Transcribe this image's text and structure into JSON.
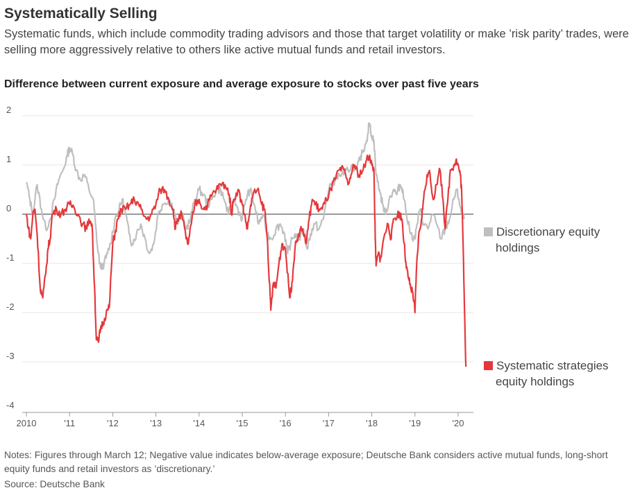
{
  "title": "Systematically Selling",
  "subtitle": "Systematic funds, which include commodity trading advisors and those that target volatility or make ’risk parity’ trades, were selling more aggressively relative to others like active mutual funds and retail investors.",
  "notes": "Notes: Figures through March 12; Negative value indicates below-average exposure; Deutsche Bank considers active mutual funds, long-short equity funds and retail investors as ’discretionary.’",
  "source": "Source: Deutsche Bank",
  "legend": {
    "discretionary_line1": "Discretionary equity",
    "discretionary_line2": "holdings",
    "systematic_line1": "Systematic strategies",
    "systematic_line2": "equity holdings"
  },
  "colors": {
    "discretionary": "#bfbfbf",
    "systematic": "#e5383b",
    "zero_line": "#333333",
    "grid": "#e6e6e6",
    "axis": "#999999"
  },
  "chart_data": {
    "type": "line",
    "title": "Difference between current exposure and average exposure to stocks over past five years",
    "xlabel": "",
    "ylabel": "",
    "x_tick_labels": [
      "2010",
      "'11",
      "'12",
      "'13",
      "'14",
      "'15",
      "'16",
      "'17",
      "'18",
      "'19",
      "'20"
    ],
    "y_tick_labels": [
      "2",
      "1",
      "0",
      "-1",
      "-2",
      "-3",
      "-4"
    ],
    "ylim": [
      -4,
      2
    ],
    "xlim": [
      2010.0,
      2020.3
    ],
    "grid": true,
    "legend_position": "right",
    "series": [
      {
        "name": "Discretionary equity holdings",
        "points": [
          [
            2010.0,
            0.65
          ],
          [
            2010.08,
            0.3
          ],
          [
            2010.15,
            0.0
          ],
          [
            2010.25,
            0.6
          ],
          [
            2010.35,
            0.1
          ],
          [
            2010.45,
            -0.3
          ],
          [
            2010.55,
            -0.1
          ],
          [
            2010.65,
            0.3
          ],
          [
            2010.75,
            0.7
          ],
          [
            2010.85,
            0.9
          ],
          [
            2010.95,
            1.2
          ],
          [
            2011.0,
            1.35
          ],
          [
            2011.08,
            1.2
          ],
          [
            2011.15,
            0.9
          ],
          [
            2011.25,
            0.7
          ],
          [
            2011.35,
            0.8
          ],
          [
            2011.45,
            0.5
          ],
          [
            2011.55,
            0.3
          ],
          [
            2011.6,
            -0.2
          ],
          [
            2011.65,
            -0.7
          ],
          [
            2011.72,
            -1.1
          ],
          [
            2011.8,
            -1.0
          ],
          [
            2011.88,
            -0.8
          ],
          [
            2011.95,
            -0.6
          ],
          [
            2012.05,
            -0.1
          ],
          [
            2012.15,
            0.1
          ],
          [
            2012.22,
            0.3
          ],
          [
            2012.3,
            0.0
          ],
          [
            2012.38,
            -0.4
          ],
          [
            2012.45,
            -0.6
          ],
          [
            2012.55,
            -0.4
          ],
          [
            2012.65,
            -0.2
          ],
          [
            2012.75,
            -0.5
          ],
          [
            2012.85,
            -0.8
          ],
          [
            2012.95,
            -0.6
          ],
          [
            2013.05,
            0.0
          ],
          [
            2013.15,
            0.2
          ],
          [
            2013.3,
            0.3
          ],
          [
            2013.42,
            0.1
          ],
          [
            2013.5,
            -0.2
          ],
          [
            2013.6,
            0.0
          ],
          [
            2013.7,
            -0.3
          ],
          [
            2013.8,
            -0.1
          ],
          [
            2013.9,
            0.3
          ],
          [
            2014.0,
            0.5
          ],
          [
            2014.1,
            0.4
          ],
          [
            2014.2,
            0.2
          ],
          [
            2014.3,
            0.3
          ],
          [
            2014.4,
            0.5
          ],
          [
            2014.5,
            0.5
          ],
          [
            2014.58,
            0.3
          ],
          [
            2014.68,
            0.0
          ],
          [
            2014.8,
            0.3
          ],
          [
            2014.9,
            0.1
          ],
          [
            2015.0,
            -0.1
          ],
          [
            2015.08,
            0.3
          ],
          [
            2015.18,
            0.5
          ],
          [
            2015.28,
            0.2
          ],
          [
            2015.38,
            -0.2
          ],
          [
            2015.48,
            0.0
          ],
          [
            2015.58,
            -0.4
          ],
          [
            2015.68,
            -0.5
          ],
          [
            2015.78,
            -0.3
          ],
          [
            2015.88,
            -0.2
          ],
          [
            2015.98,
            -0.4
          ],
          [
            2016.05,
            -0.8
          ],
          [
            2016.12,
            -0.6
          ],
          [
            2016.22,
            -0.4
          ],
          [
            2016.32,
            -0.5
          ],
          [
            2016.42,
            -0.3
          ],
          [
            2016.5,
            -0.7
          ],
          [
            2016.58,
            -0.4
          ],
          [
            2016.68,
            -0.2
          ],
          [
            2016.78,
            -0.3
          ],
          [
            2016.88,
            -0.1
          ],
          [
            2016.95,
            0.3
          ],
          [
            2017.05,
            0.6
          ],
          [
            2017.15,
            0.7
          ],
          [
            2017.25,
            0.8
          ],
          [
            2017.35,
            0.8
          ],
          [
            2017.45,
            0.9
          ],
          [
            2017.55,
            1.0
          ],
          [
            2017.65,
            0.9
          ],
          [
            2017.72,
            1.1
          ],
          [
            2017.8,
            1.3
          ],
          [
            2017.88,
            1.5
          ],
          [
            2017.94,
            1.85
          ],
          [
            2018.0,
            1.6
          ],
          [
            2018.05,
            1.5
          ],
          [
            2018.1,
            0.8
          ],
          [
            2018.18,
            0.5
          ],
          [
            2018.25,
            0.2
          ],
          [
            2018.32,
            0.0
          ],
          [
            2018.4,
            0.3
          ],
          [
            2018.5,
            0.5
          ],
          [
            2018.58,
            0.4
          ],
          [
            2018.65,
            0.6
          ],
          [
            2018.72,
            0.5
          ],
          [
            2018.8,
            0.0
          ],
          [
            2018.9,
            -0.4
          ],
          [
            2019.0,
            -0.5
          ],
          [
            2019.05,
            -0.2
          ],
          [
            2019.12,
            0.1
          ],
          [
            2019.2,
            -0.2
          ],
          [
            2019.3,
            -0.3
          ],
          [
            2019.4,
            0.0
          ],
          [
            2019.5,
            -0.2
          ],
          [
            2019.6,
            -0.5
          ],
          [
            2019.7,
            -0.3
          ],
          [
            2019.8,
            -0.1
          ],
          [
            2019.9,
            0.3
          ],
          [
            2019.96,
            0.5
          ],
          [
            2020.02,
            0.3
          ],
          [
            2020.08,
            0.0
          ],
          [
            2020.14,
            -0.1
          ]
        ]
      },
      {
        "name": "Systematic strategies equity holdings",
        "points": [
          [
            2010.0,
            0.0
          ],
          [
            2010.05,
            -0.3
          ],
          [
            2010.1,
            -0.5
          ],
          [
            2010.15,
            0.0
          ],
          [
            2010.2,
            0.1
          ],
          [
            2010.25,
            -0.4
          ],
          [
            2010.32,
            -1.5
          ],
          [
            2010.38,
            -1.7
          ],
          [
            2010.45,
            -1.2
          ],
          [
            2010.5,
            -0.7
          ],
          [
            2010.55,
            -0.5
          ],
          [
            2010.6,
            0.0
          ],
          [
            2010.7,
            0.1
          ],
          [
            2010.8,
            0.0
          ],
          [
            2010.9,
            0.1
          ],
          [
            2011.0,
            0.2
          ],
          [
            2011.1,
            0.15
          ],
          [
            2011.2,
            0.0
          ],
          [
            2011.3,
            -0.2
          ],
          [
            2011.4,
            -0.3
          ],
          [
            2011.45,
            -0.1
          ],
          [
            2011.52,
            -0.2
          ],
          [
            2011.58,
            -1.5
          ],
          [
            2011.62,
            -2.55
          ],
          [
            2011.67,
            -2.6
          ],
          [
            2011.72,
            -2.3
          ],
          [
            2011.78,
            -2.2
          ],
          [
            2011.85,
            -2.0
          ],
          [
            2011.92,
            -1.9
          ],
          [
            2012.0,
            -0.6
          ],
          [
            2012.05,
            -0.4
          ],
          [
            2012.12,
            -0.1
          ],
          [
            2012.2,
            0.1
          ],
          [
            2012.3,
            0.1
          ],
          [
            2012.4,
            0.2
          ],
          [
            2012.5,
            0.3
          ],
          [
            2012.6,
            0.2
          ],
          [
            2012.7,
            0.0
          ],
          [
            2012.8,
            -0.1
          ],
          [
            2012.9,
            0.0
          ],
          [
            2013.0,
            0.2
          ],
          [
            2013.1,
            0.5
          ],
          [
            2013.2,
            0.5
          ],
          [
            2013.3,
            0.3
          ],
          [
            2013.4,
            0.1
          ],
          [
            2013.45,
            -0.3
          ],
          [
            2013.5,
            -0.1
          ],
          [
            2013.6,
            0.0
          ],
          [
            2013.7,
            -0.5
          ],
          [
            2013.75,
            -0.6
          ],
          [
            2013.82,
            -0.2
          ],
          [
            2013.9,
            0.2
          ],
          [
            2014.0,
            0.3
          ],
          [
            2014.1,
            0.1
          ],
          [
            2014.2,
            0.2
          ],
          [
            2014.3,
            0.4
          ],
          [
            2014.4,
            0.5
          ],
          [
            2014.5,
            0.6
          ],
          [
            2014.6,
            0.6
          ],
          [
            2014.7,
            0.4
          ],
          [
            2014.75,
            0.0
          ],
          [
            2014.8,
            0.3
          ],
          [
            2014.9,
            0.5
          ],
          [
            2015.0,
            0.2
          ],
          [
            2015.05,
            0.0
          ],
          [
            2015.12,
            -0.3
          ],
          [
            2015.18,
            0.1
          ],
          [
            2015.25,
            0.4
          ],
          [
            2015.35,
            0.5
          ],
          [
            2015.45,
            0.2
          ],
          [
            2015.52,
            0.1
          ],
          [
            2015.58,
            -0.5
          ],
          [
            2015.63,
            -1.4
          ],
          [
            2015.66,
            -1.95
          ],
          [
            2015.72,
            -1.4
          ],
          [
            2015.78,
            -1.5
          ],
          [
            2015.85,
            -1.0
          ],
          [
            2015.92,
            -0.6
          ],
          [
            2016.0,
            -0.7
          ],
          [
            2016.05,
            -1.2
          ],
          [
            2016.1,
            -1.7
          ],
          [
            2016.15,
            -1.4
          ],
          [
            2016.22,
            -0.7
          ],
          [
            2016.3,
            -0.4
          ],
          [
            2016.4,
            -0.3
          ],
          [
            2016.48,
            -0.6
          ],
          [
            2016.55,
            -0.1
          ],
          [
            2016.62,
            0.3
          ],
          [
            2016.7,
            0.2
          ],
          [
            2016.78,
            0.1
          ],
          [
            2016.85,
            0.1
          ],
          [
            2016.95,
            0.3
          ],
          [
            2017.05,
            0.5
          ],
          [
            2017.15,
            0.7
          ],
          [
            2017.25,
            0.9
          ],
          [
            2017.35,
            0.9
          ],
          [
            2017.45,
            0.6
          ],
          [
            2017.52,
            0.8
          ],
          [
            2017.6,
            1.0
          ],
          [
            2017.7,
            0.8
          ],
          [
            2017.8,
            0.9
          ],
          [
            2017.88,
            1.1
          ],
          [
            2017.95,
            1.2
          ],
          [
            2018.0,
            1.0
          ],
          [
            2018.05,
            0.9
          ],
          [
            2018.08,
            -0.5
          ],
          [
            2018.1,
            -1.05
          ],
          [
            2018.15,
            -0.8
          ],
          [
            2018.2,
            -0.9
          ],
          [
            2018.3,
            -0.4
          ],
          [
            2018.38,
            -0.2
          ],
          [
            2018.45,
            -0.5
          ],
          [
            2018.5,
            -0.1
          ],
          [
            2018.6,
            0.0
          ],
          [
            2018.65,
            0.0
          ],
          [
            2018.7,
            -0.1
          ],
          [
            2018.75,
            -0.6
          ],
          [
            2018.8,
            -1.1
          ],
          [
            2018.85,
            -1.3
          ],
          [
            2018.9,
            -1.5
          ],
          [
            2018.95,
            -1.6
          ],
          [
            2019.0,
            -2.0
          ],
          [
            2019.03,
            -1.2
          ],
          [
            2019.08,
            -0.5
          ],
          [
            2019.15,
            -0.1
          ],
          [
            2019.2,
            0.3
          ],
          [
            2019.28,
            0.8
          ],
          [
            2019.35,
            0.8
          ],
          [
            2019.42,
            0.3
          ],
          [
            2019.5,
            0.6
          ],
          [
            2019.58,
            0.9
          ],
          [
            2019.65,
            0.3
          ],
          [
            2019.7,
            -0.3
          ],
          [
            2019.75,
            0.2
          ],
          [
            2019.82,
            0.9
          ],
          [
            2019.9,
            1.0
          ],
          [
            2019.95,
            1.1
          ],
          [
            2020.0,
            1.0
          ],
          [
            2020.05,
            0.8
          ],
          [
            2020.08,
            0.5
          ],
          [
            2020.12,
            -0.8
          ],
          [
            2020.15,
            -2.0
          ],
          [
            2020.18,
            -3.1
          ]
        ]
      }
    ]
  }
}
